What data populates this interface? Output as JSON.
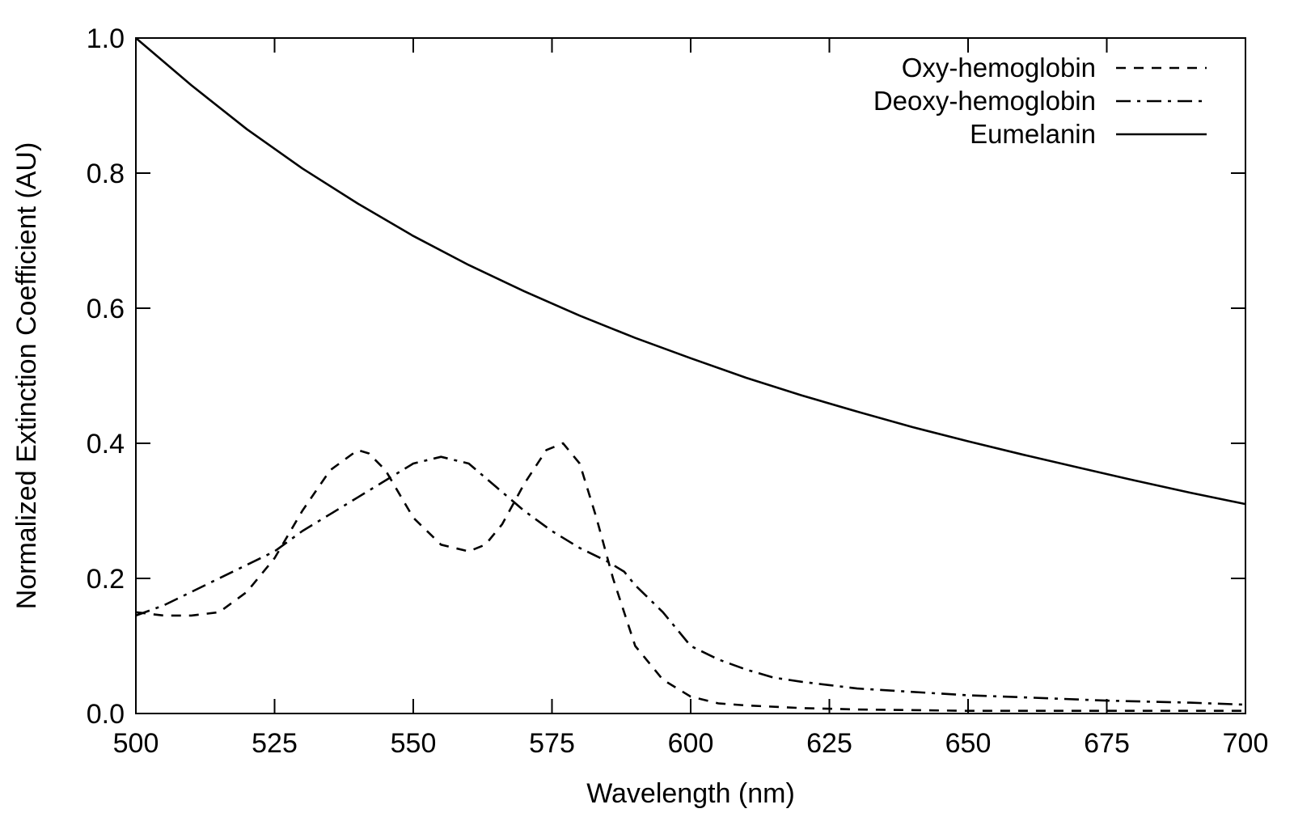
{
  "chart_data": {
    "type": "line",
    "title": "",
    "xlabel": "Wavelength (nm)",
    "ylabel": "Normalized Extinction Coefficient (AU)",
    "xlim": [
      500,
      700
    ],
    "ylim": [
      0,
      1.0
    ],
    "x_ticks": [
      500,
      525,
      550,
      575,
      600,
      625,
      650,
      675,
      700
    ],
    "y_ticks": [
      0,
      0.2,
      0.4,
      0.6,
      0.8,
      1.0
    ],
    "x_tick_labels": [
      "500",
      "525",
      "550",
      "575",
      "600",
      "625",
      "650",
      "675",
      "700"
    ],
    "y_tick_labels": [
      "0.0",
      "0.2",
      "0.4",
      "0.6",
      "0.8",
      "1.0"
    ],
    "grid": false,
    "legend_position": "top-right",
    "series": [
      {
        "name": "Oxy-hemoglobin",
        "style": "dashed",
        "x": [
          500,
          505,
          510,
          515,
          520,
          525,
          530,
          535,
          540,
          542,
          545,
          550,
          555,
          560,
          563,
          566,
          570,
          574,
          577,
          580,
          583,
          586,
          590,
          595,
          600,
          605,
          610,
          620,
          630,
          650,
          675,
          700
        ],
        "y": [
          0.15,
          0.145,
          0.145,
          0.15,
          0.18,
          0.23,
          0.3,
          0.36,
          0.39,
          0.385,
          0.36,
          0.29,
          0.25,
          0.24,
          0.25,
          0.28,
          0.34,
          0.39,
          0.4,
          0.37,
          0.29,
          0.2,
          0.1,
          0.05,
          0.025,
          0.015,
          0.012,
          0.008,
          0.006,
          0.004,
          0.004,
          0.004
        ]
      },
      {
        "name": "Deoxy-hemoglobin",
        "style": "dash-dot",
        "x": [
          500,
          505,
          510,
          515,
          520,
          525,
          530,
          535,
          540,
          545,
          550,
          555,
          560,
          565,
          570,
          575,
          580,
          585,
          588,
          590,
          595,
          600,
          605,
          610,
          615,
          620,
          625,
          630,
          640,
          650,
          660,
          675,
          690,
          700
        ],
        "y": [
          0.145,
          0.16,
          0.18,
          0.2,
          0.22,
          0.24,
          0.27,
          0.295,
          0.32,
          0.345,
          0.37,
          0.38,
          0.37,
          0.335,
          0.3,
          0.27,
          0.245,
          0.225,
          0.21,
          0.19,
          0.15,
          0.1,
          0.08,
          0.065,
          0.053,
          0.047,
          0.042,
          0.037,
          0.032,
          0.027,
          0.024,
          0.019,
          0.016,
          0.013
        ]
      },
      {
        "name": "Eumelanin",
        "style": "solid",
        "x": [
          500,
          510,
          520,
          530,
          540,
          550,
          560,
          570,
          580,
          590,
          600,
          610,
          620,
          630,
          640,
          650,
          660,
          670,
          680,
          690,
          700
        ],
        "y": [
          1.0,
          0.93,
          0.865,
          0.807,
          0.755,
          0.707,
          0.664,
          0.625,
          0.589,
          0.556,
          0.526,
          0.497,
          0.471,
          0.447,
          0.424,
          0.403,
          0.383,
          0.364,
          0.345,
          0.327,
          0.31
        ]
      }
    ]
  }
}
